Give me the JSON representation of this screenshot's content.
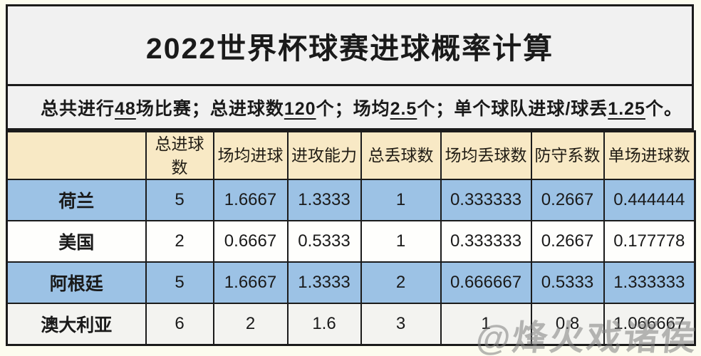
{
  "title": "2022世界杯球赛进球概率计算",
  "subtitle": {
    "segments": [
      {
        "text": "总共进行",
        "underline": false
      },
      {
        "text": "48",
        "underline": true
      },
      {
        "text": "场比赛；总进球数",
        "underline": false
      },
      {
        "text": "120",
        "underline": true
      },
      {
        "text": "个；场均",
        "underline": false
      },
      {
        "text": "2.5",
        "underline": true
      },
      {
        "text": "个；单个球队进球/球丢",
        "underline": false
      },
      {
        "text": "1.25",
        "underline": true
      },
      {
        "text": "个。",
        "underline": false
      }
    ]
  },
  "table": {
    "headers": [
      "",
      "总进球数",
      "场均进球",
      "进攻能力",
      "总丢球数",
      "场均丢球数",
      "防守系数",
      "单场进球数"
    ],
    "rows": [
      {
        "team": "荷兰",
        "values": [
          "5",
          "1.6667",
          "1.3333",
          "1",
          "0.333333",
          "0.2667",
          "0.444444"
        ],
        "bg": "#9CC2E5"
      },
      {
        "team": "美国",
        "values": [
          "2",
          "0.6667",
          "0.5333",
          "1",
          "0.333333",
          "0.2667",
          "0.177778"
        ],
        "bg": "#FEFEFC"
      },
      {
        "team": "阿根廷",
        "values": [
          "5",
          "1.6667",
          "1.3333",
          "2",
          "0.666667",
          "0.5333",
          "1.333333"
        ],
        "bg": "#9CC2E5"
      },
      {
        "team": "澳大利亚",
        "values": [
          "6",
          "2",
          "1.6",
          "3",
          "1",
          "0.8",
          "1.066667"
        ],
        "bg": "#F3F3F0"
      }
    ]
  },
  "watermark": "@烽火戏诸侯",
  "colors": {
    "page_bg": "#FCFCEF",
    "band_bg": "#F1F1F1",
    "header_bg": "#F8E9C5",
    "row_blue": "#9CC2E5",
    "border": "#1B1B1B",
    "text": "#1A1A1A",
    "watermark_gray": "#7D7D7D"
  }
}
